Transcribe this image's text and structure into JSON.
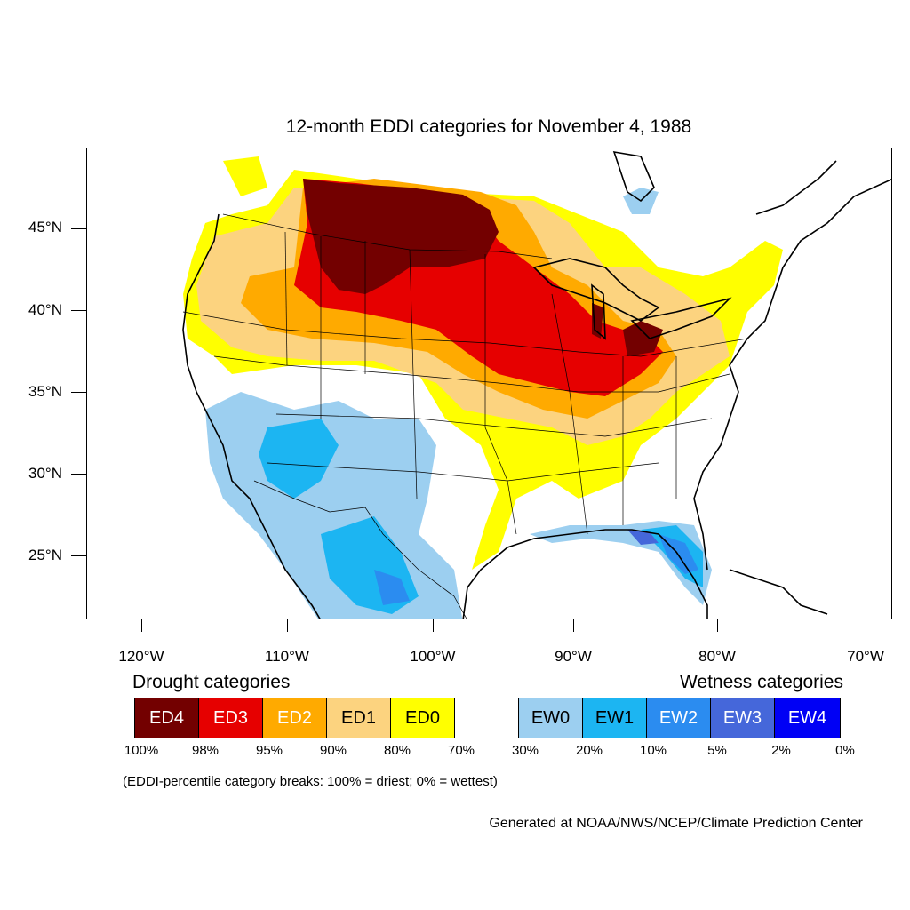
{
  "title": "12-month EDDI categories for November 4, 1988",
  "latitude_labels": [
    "45°N",
    "40°N",
    "35°N",
    "30°N",
    "25°N"
  ],
  "longitude_labels": [
    "120°W",
    "110°W",
    "100°W",
    "90°W",
    "80°W",
    "70°W"
  ],
  "legend": {
    "drought_heading": "Drought categories",
    "wetness_heading": "Wetness categories",
    "categories": [
      {
        "label": "ED4",
        "color": "#730000",
        "text_color": "#ffffff"
      },
      {
        "label": "ED3",
        "color": "#e60000",
        "text_color": "#ffffff"
      },
      {
        "label": "ED2",
        "color": "#ffaa00",
        "text_color": "#ffffff"
      },
      {
        "label": "ED1",
        "color": "#fcd37f",
        "text_color": "#000000"
      },
      {
        "label": "ED0",
        "color": "#ffff00",
        "text_color": "#000000"
      },
      {
        "label": "",
        "color": "#ffffff",
        "text_color": "#000000"
      },
      {
        "label": "EW0",
        "color": "#9ccff0",
        "text_color": "#000000"
      },
      {
        "label": "EW1",
        "color": "#1cb5f2",
        "text_color": "#000000"
      },
      {
        "label": "EW2",
        "color": "#2b8cf0",
        "text_color": "#ffffff"
      },
      {
        "label": "EW3",
        "color": "#4567da",
        "text_color": "#ffffff"
      },
      {
        "label": "EW4",
        "color": "#0000f5",
        "text_color": "#ffffff"
      }
    ],
    "breaks": [
      "100%",
      "98%",
      "95%",
      "90%",
      "80%",
      "70%",
      "30%",
      "20%",
      "10%",
      "5%",
      "2%",
      "0%"
    ],
    "note": "(EDDI-percentile category breaks: 100% = driest; 0% = wettest)"
  },
  "credit": "Generated at NOAA/NWS/NCEP/Climate Prediction Center"
}
